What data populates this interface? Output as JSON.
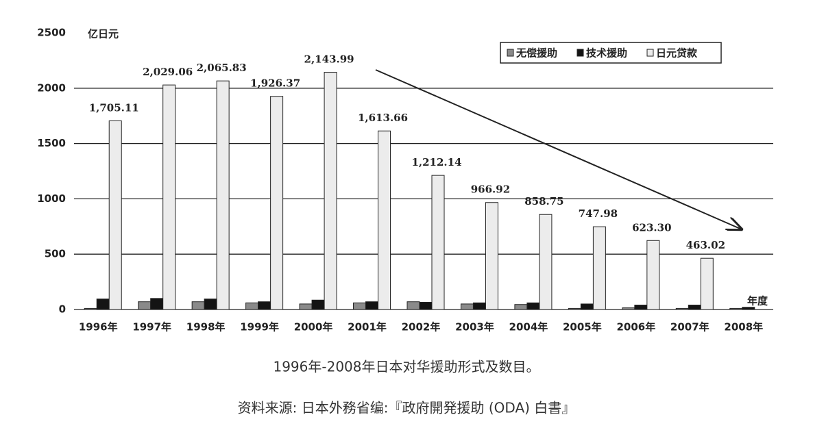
{
  "chart_data": {
    "type": "bar",
    "y_unit": "亿日元",
    "x_unit": "年度",
    "caption": "1996年-2008年日本对华援助形式及数目。",
    "source": "资料来源: 日本外務省编:『政府開発援助 (ODA) 白書』",
    "categories": [
      "1996年",
      "1997年",
      "1998年",
      "1999年",
      "2000年",
      "2001年",
      "2002年",
      "2003年",
      "2004年",
      "2005年",
      "2006年",
      "2007年",
      "2008年"
    ],
    "series": [
      {
        "name": "无偿援助",
        "color": "#8a8a8a",
        "values": [
          10,
          70,
          70,
          60,
          50,
          60,
          70,
          50,
          45,
          10,
          15,
          10,
          10
        ]
      },
      {
        "name": "技术援助",
        "color": "#141414",
        "values": [
          95,
          100,
          95,
          70,
          85,
          70,
          65,
          60,
          60,
          50,
          40,
          40,
          20
        ]
      },
      {
        "name": "日元贷款",
        "color": "#ececec",
        "values": [
          1705.11,
          2029.06,
          2065.83,
          1926.37,
          2143.99,
          1613.66,
          1212.14,
          966.92,
          858.75,
          747.98,
          623.3,
          463.02,
          null
        ],
        "value_labels": [
          "1,705.11",
          "2,029.06",
          "2,065.83",
          "1,926.37",
          "2,143.99",
          "1,613.66",
          "1,212.14",
          "966.92",
          "858.75",
          "747.98",
          "623.30",
          "463.02",
          null
        ]
      }
    ],
    "ylim": [
      0,
      2500
    ],
    "yticks": [
      0,
      500,
      1000,
      1500,
      2000,
      2500
    ],
    "grid": true,
    "legend": "top-right"
  }
}
